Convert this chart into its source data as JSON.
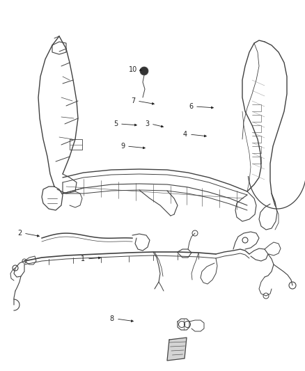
{
  "bg_color": "#ffffff",
  "line_color": "#404040",
  "label_color": "#222222",
  "label_fontsize": 7.0,
  "arrow_fontsize": 6.5,
  "label_positions": {
    "1": [
      0.255,
      0.415,
      0.28,
      0.421
    ],
    "2": [
      0.06,
      0.488,
      0.09,
      0.49
    ],
    "3": [
      0.425,
      0.555,
      0.45,
      0.548
    ],
    "4": [
      0.53,
      0.54,
      0.555,
      0.543
    ],
    "5": [
      0.33,
      0.558,
      0.36,
      0.555
    ],
    "6": [
      0.548,
      0.57,
      0.572,
      0.567
    ],
    "7": [
      0.37,
      0.572,
      0.395,
      0.568
    ],
    "8": [
      0.355,
      0.21,
      0.385,
      0.213
    ],
    "9": [
      0.368,
      0.54,
      0.395,
      0.537
    ],
    "10": [
      0.22,
      0.72,
      0.242,
      0.71
    ]
  }
}
